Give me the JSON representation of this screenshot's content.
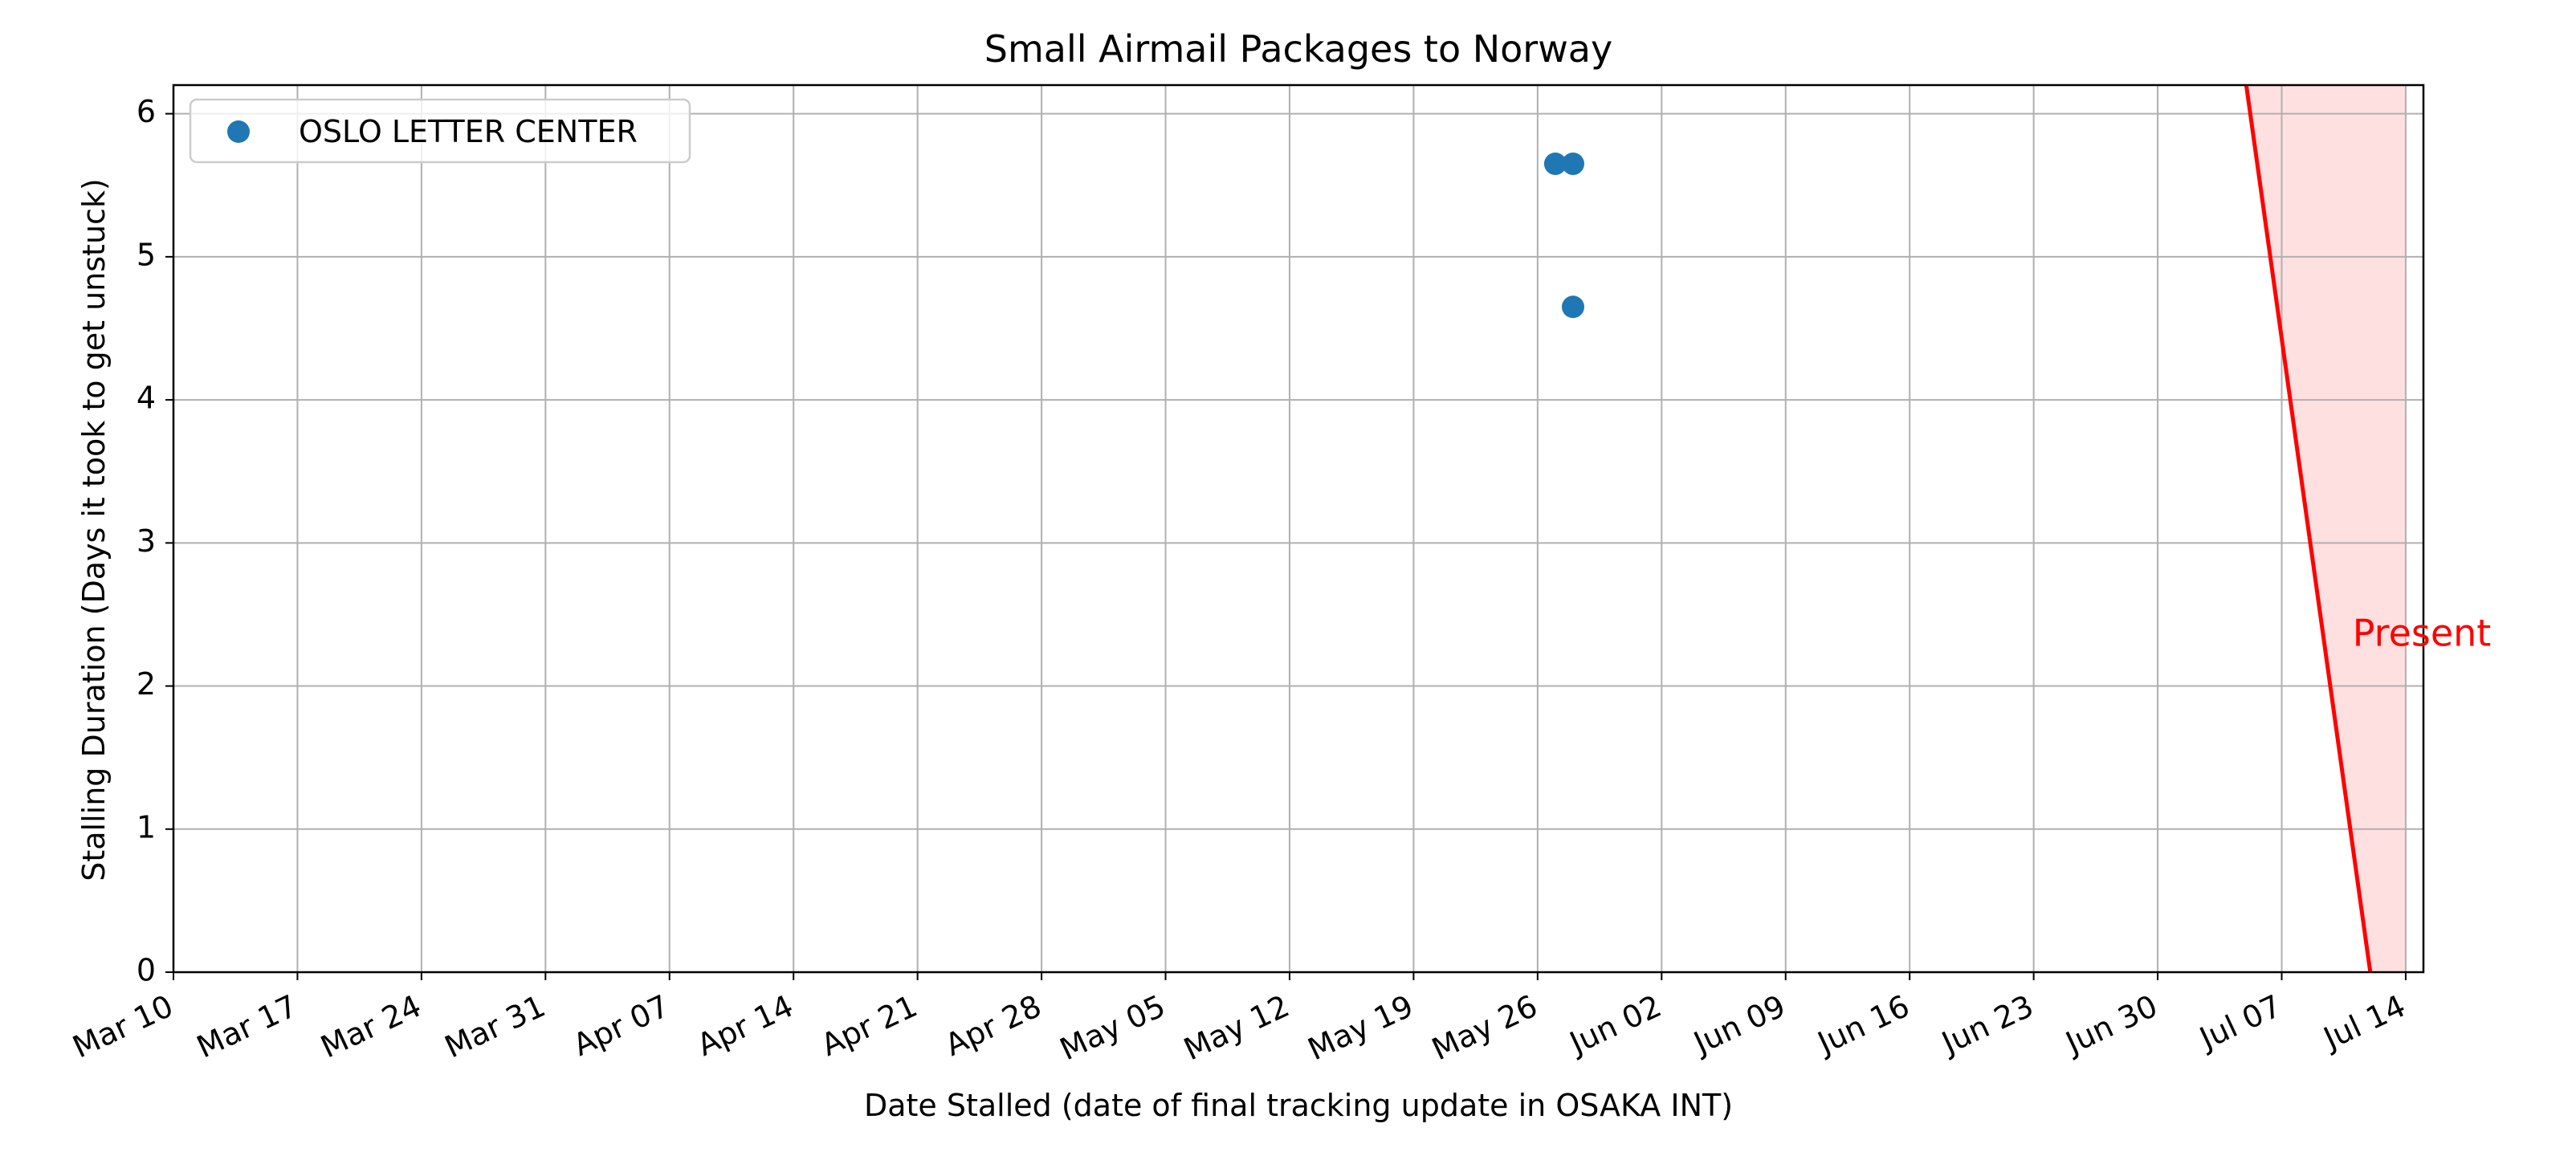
{
  "chart_data": {
    "type": "scatter",
    "title": "Small Airmail Packages to Norway",
    "xlabel": "Date Stalled (date of final tracking update in OSAKA INT)",
    "ylabel": "Stalling Duration (Days it took to get unstuck)",
    "x_axis": {
      "type": "date",
      "range": [
        "2024-03-10",
        "2024-07-15"
      ],
      "ticks": [
        {
          "date": "2024-03-10",
          "label": "Mar 10"
        },
        {
          "date": "2024-03-17",
          "label": "Mar 17"
        },
        {
          "date": "2024-03-24",
          "label": "Mar 24"
        },
        {
          "date": "2024-03-31",
          "label": "Mar 31"
        },
        {
          "date": "2024-04-07",
          "label": "Apr 07"
        },
        {
          "date": "2024-04-14",
          "label": "Apr 14"
        },
        {
          "date": "2024-04-21",
          "label": "Apr 21"
        },
        {
          "date": "2024-04-28",
          "label": "Apr 28"
        },
        {
          "date": "2024-05-05",
          "label": "May 05"
        },
        {
          "date": "2024-05-12",
          "label": "May 12"
        },
        {
          "date": "2024-05-19",
          "label": "May 19"
        },
        {
          "date": "2024-05-26",
          "label": "May 26"
        },
        {
          "date": "2024-06-02",
          "label": "Jun 02"
        },
        {
          "date": "2024-06-09",
          "label": "Jun 09"
        },
        {
          "date": "2024-06-16",
          "label": "Jun 16"
        },
        {
          "date": "2024-06-23",
          "label": "Jun 23"
        },
        {
          "date": "2024-06-30",
          "label": "Jun 30"
        },
        {
          "date": "2024-07-07",
          "label": "Jul 07"
        },
        {
          "date": "2024-07-14",
          "label": "Jul 14"
        }
      ]
    },
    "y_axis": {
      "range": [
        0,
        6.2
      ],
      "ticks": [
        {
          "value": 0,
          "label": "0"
        },
        {
          "value": 1,
          "label": "1"
        },
        {
          "value": 2,
          "label": "2"
        },
        {
          "value": 3,
          "label": "3"
        },
        {
          "value": 4,
          "label": "4"
        },
        {
          "value": 5,
          "label": "5"
        },
        {
          "value": 6,
          "label": "6"
        }
      ]
    },
    "grid": true,
    "legend_position": "top-left",
    "series": [
      {
        "name": "OSLO LETTER CENTER",
        "color": "#1f77b4",
        "points": [
          {
            "x": "2024-05-27",
            "y": 5.65
          },
          {
            "x": "2024-05-28",
            "y": 5.65
          },
          {
            "x": "2024-05-28",
            "y": 4.65
          }
        ]
      }
    ],
    "annotation": {
      "text": "Present",
      "color": "#ff0000",
      "line_color": "#ff0000",
      "shade_color": "#ffcccc",
      "line": {
        "top": {
          "x": "2024-07-05",
          "y": 6.2
        },
        "bottom": {
          "x": "2024-07-12",
          "y": 0
        }
      },
      "shade": {
        "x_end": "2024-07-14"
      },
      "text_anchor": {
        "x": "2024-07-11",
        "y": 2.35
      }
    }
  }
}
